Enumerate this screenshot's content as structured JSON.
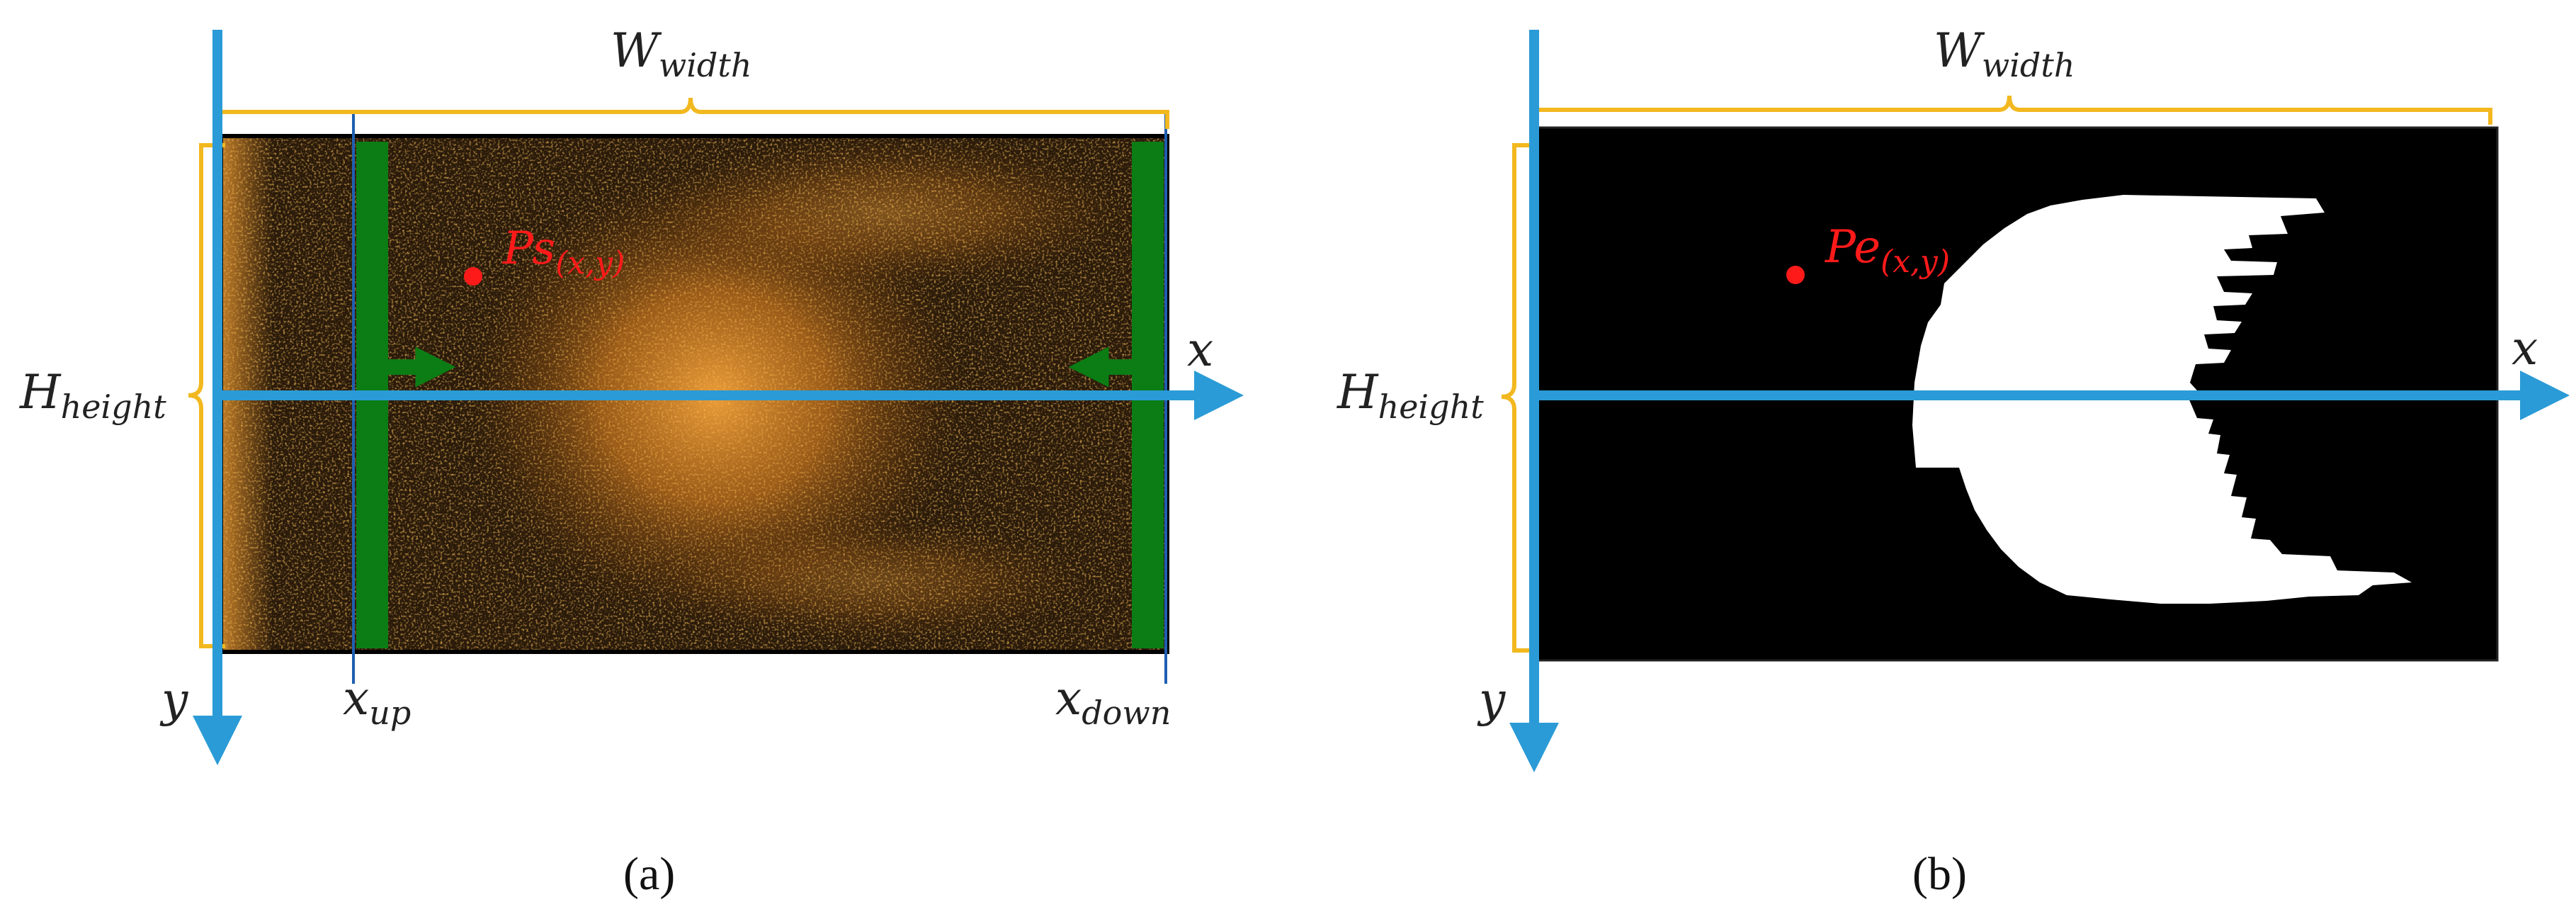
{
  "colors": {
    "axis": "#2a9bd6",
    "brace": "#f2b81f",
    "marker": "#ff1a1a",
    "band": "#0b7d14",
    "frame_a": "#1a1209",
    "frame_b": "#000000",
    "mask": "#ffffff",
    "divider": "#1f5fb0"
  },
  "panel_a": {
    "width_label": {
      "base": "W",
      "sub": "width"
    },
    "height_label": {
      "base": "H",
      "sub": "height"
    },
    "x_label": "x",
    "y_label": "y",
    "point_label": {
      "base": "Ps",
      "sub": "(x,y)"
    },
    "x_up_label": {
      "base": "x",
      "sub": "up"
    },
    "x_down_label": {
      "base": "x",
      "sub": "down"
    },
    "caption": "(a)"
  },
  "panel_b": {
    "width_label": {
      "base": "W",
      "sub": "width"
    },
    "height_label": {
      "base": "H",
      "sub": "height"
    },
    "x_label": "x",
    "y_label": "y",
    "point_label": {
      "base": "Pe",
      "sub": "(x,y)"
    },
    "caption": "(b)"
  }
}
